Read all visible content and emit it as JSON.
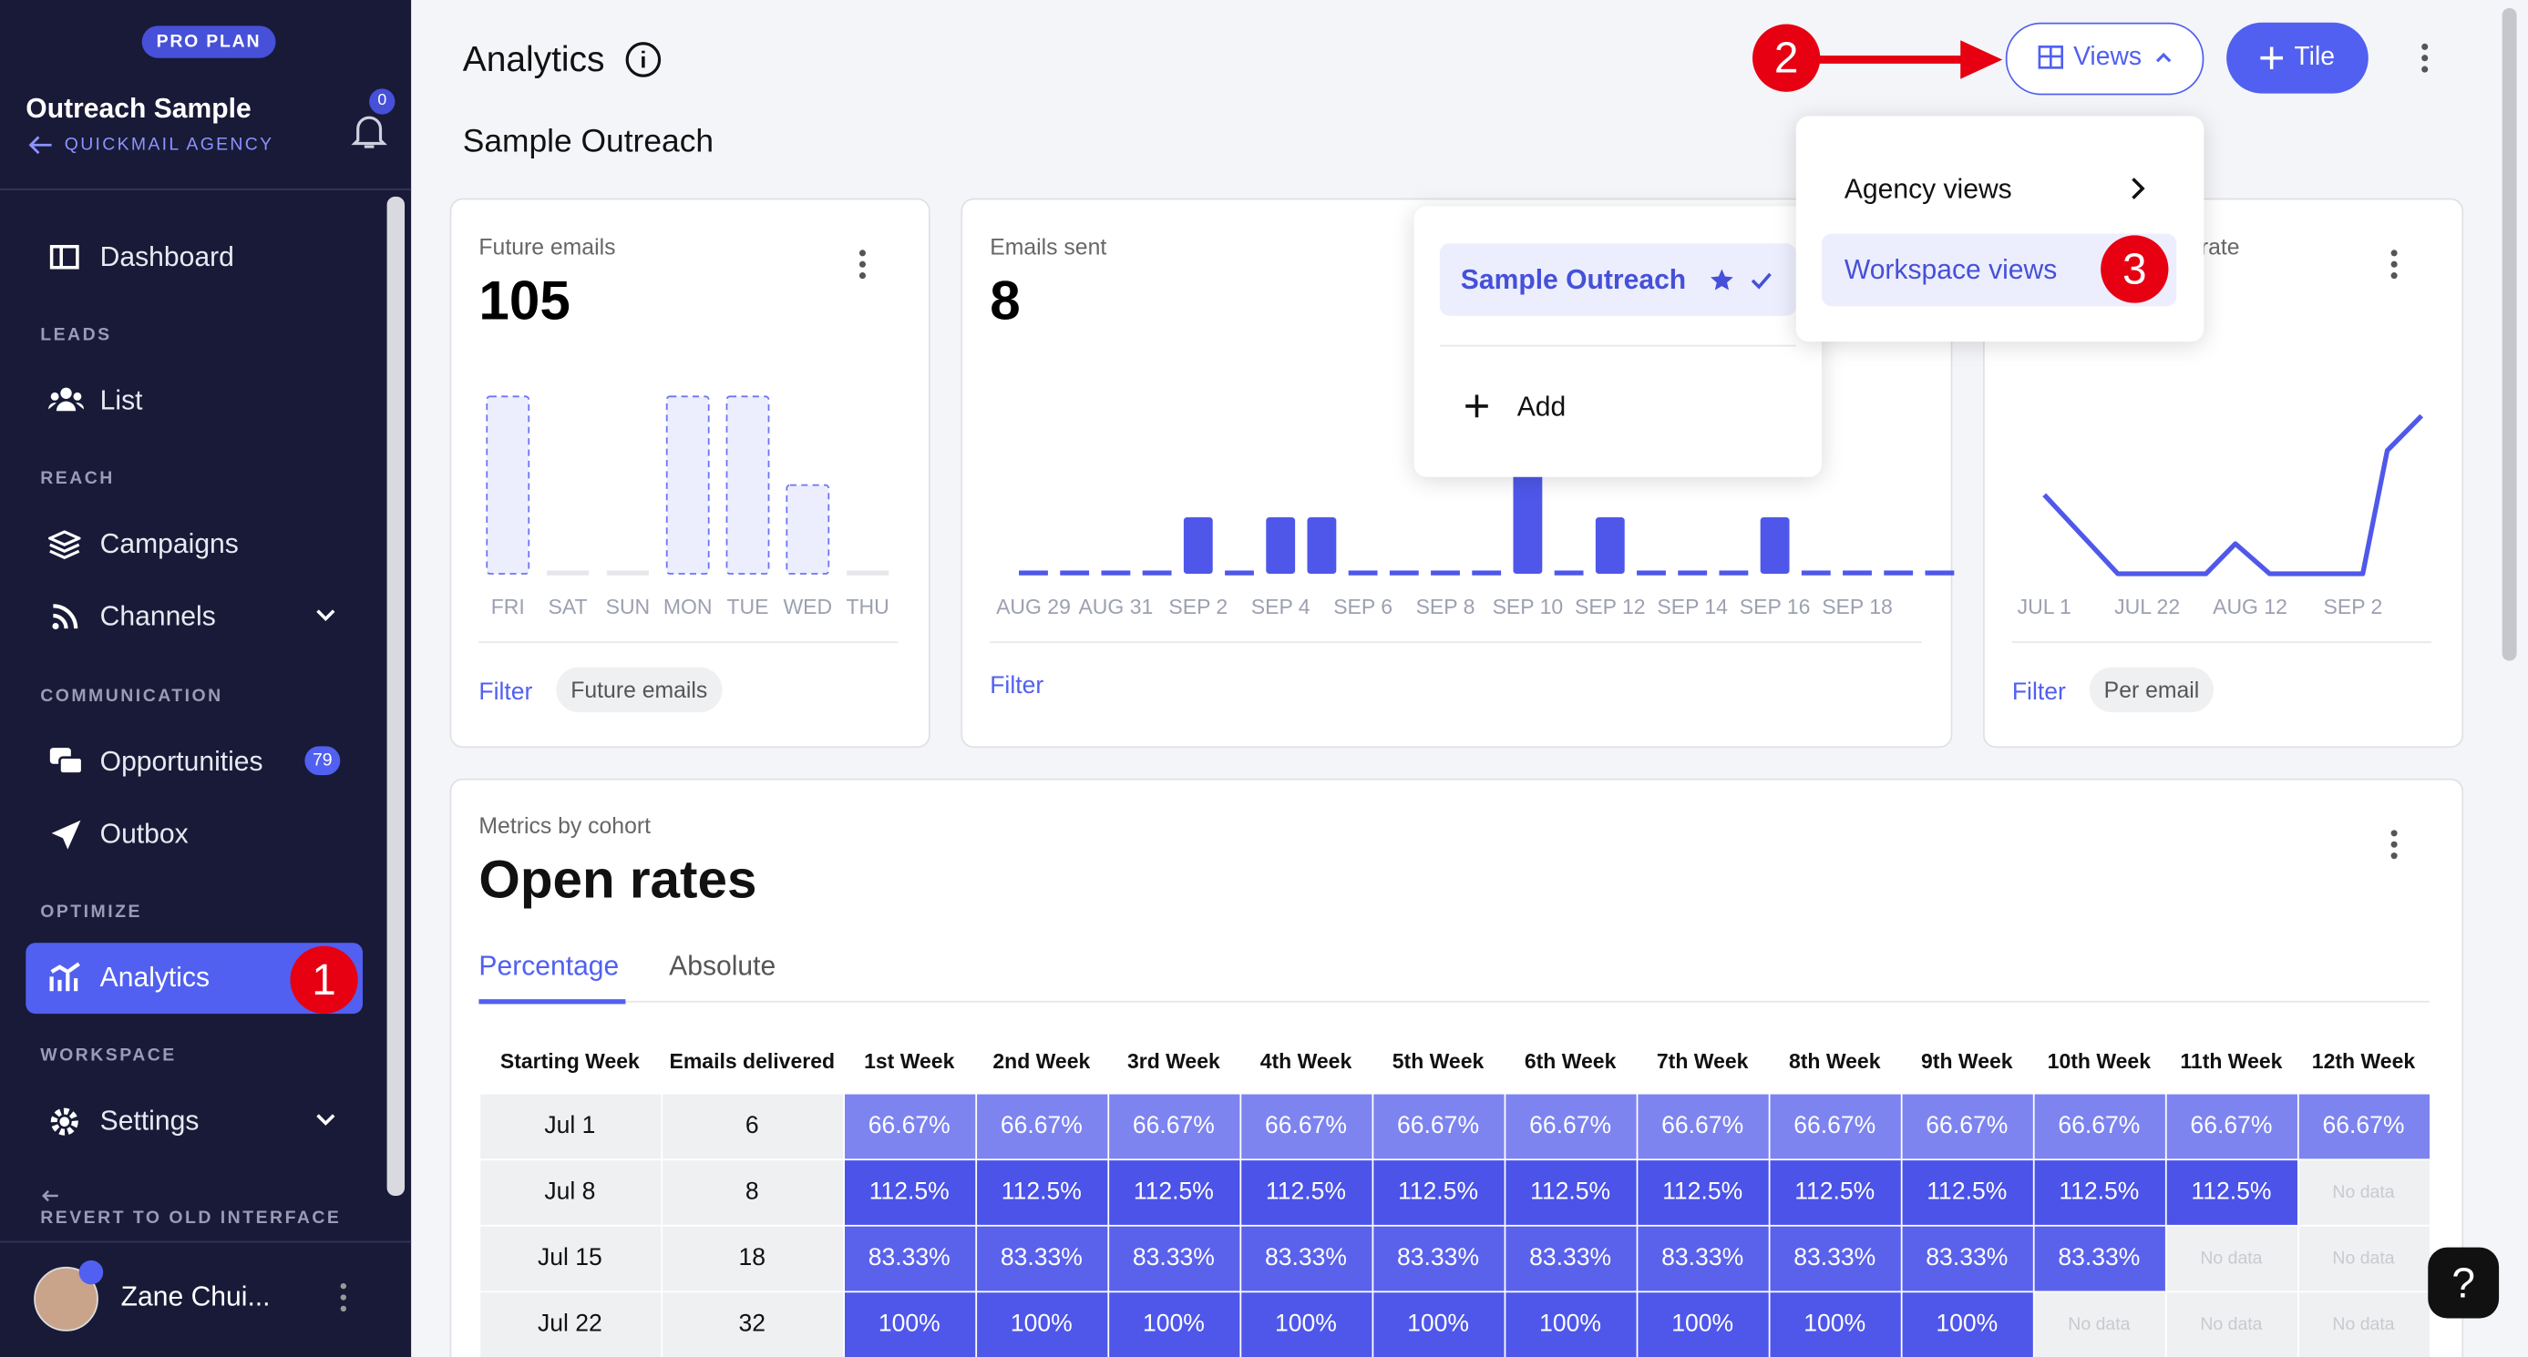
{
  "sidebar": {
    "plan": "PRO PLAN",
    "workspace": "Outreach Sample",
    "agency": "QUICKMAIL AGENCY",
    "notifications": 0,
    "items": {
      "dashboard": "Dashboard",
      "leads": "LEADS",
      "list": "List",
      "reach": "REACH",
      "campaigns": "Campaigns",
      "channels": "Channels",
      "communication": "COMMUNICATION",
      "opportunities": "Opportunities",
      "opportunities_count": 79,
      "outbox": "Outbox",
      "optimize": "OPTIMIZE",
      "analytics": "Analytics",
      "workspace": "WORKSPACE",
      "settings": "Settings",
      "revert": "REVERT TO OLD INTERFACE"
    },
    "user": "Zane Chui..."
  },
  "header": {
    "title": "Analytics",
    "subtitle": "Sample Outreach",
    "views": "Views",
    "tile": "Tile"
  },
  "views_menu": {
    "current": "Sample Outreach",
    "add": "Add"
  },
  "views_submenu": {
    "agency": "Agency views",
    "workspace": "Workspace views"
  },
  "annotations": [
    "1",
    "2",
    "3"
  ],
  "tiles": [
    {
      "label": "Future emails",
      "value": 105,
      "filter": "Filter",
      "chip": "Future emails",
      "chart": {
        "type": "bar",
        "color": "#6d74f0",
        "categories": [
          "FRI",
          "SAT",
          "SUN",
          "MON",
          "TUE",
          "WED",
          "THU"
        ],
        "values": [
          2,
          0,
          0,
          2,
          2,
          1,
          0
        ]
      }
    },
    {
      "label": "Emails sent",
      "value": 8,
      "filter": "Filter",
      "chart": {
        "type": "bar",
        "color": "#4f57ea",
        "categories": [
          "AUG 29",
          null,
          "AUG 31",
          null,
          "SEP 2",
          null,
          "SEP 4",
          null,
          "SEP 6",
          null,
          "SEP 8",
          null,
          "SEP 10",
          null,
          "SEP 12",
          null,
          "SEP 14",
          null,
          "SEP 16",
          null,
          "SEP 18",
          null,
          null
        ],
        "values": [
          0,
          0,
          0,
          0,
          1,
          0,
          1,
          1,
          0,
          0,
          0,
          0,
          3,
          0,
          1,
          0,
          0,
          0,
          1,
          0,
          0,
          0,
          0
        ]
      }
    },
    {
      "label": "rate",
      "filter": "Filter",
      "chip": "Per email",
      "chart": {
        "type": "line",
        "color": "#5058ea",
        "x": [
          0,
          15,
          33,
          39,
          46,
          65,
          70,
          77
        ],
        "values": [
          50,
          0,
          0,
          19,
          0,
          0,
          78,
          100
        ],
        "xlim": [
          0,
          77
        ],
        "ylim": [
          0,
          100
        ],
        "xticks": [
          {
            "value": 0,
            "label": "JUL 1"
          },
          {
            "value": 21,
            "label": "JUL 22"
          },
          {
            "value": 42,
            "label": "AUG 12"
          },
          {
            "value": 63,
            "label": "SEP 2"
          }
        ]
      }
    }
  ],
  "cohort": {
    "kicker": "Metrics by cohort",
    "title": "Open rates",
    "tabs": [
      "Percentage",
      "Absolute"
    ],
    "table": {
      "headers": [
        "Starting Week",
        "Emails delivered",
        "1st Week",
        "2nd Week",
        "3rd Week",
        "4th Week",
        "5th Week",
        "6th Week",
        "7th Week",
        "8th Week",
        "9th Week",
        "10th Week",
        "11th Week",
        "12th Week"
      ],
      "row_colors": [
        "#7d84f0",
        "#4b53e8",
        "#5a62ec",
        "#4f57ea"
      ],
      "rows": [
        [
          "Jul 1",
          6,
          "66.67%",
          "66.67%",
          "66.67%",
          "66.67%",
          "66.67%",
          "66.67%",
          "66.67%",
          "66.67%",
          "66.67%",
          "66.67%",
          "66.67%",
          "66.67%"
        ],
        [
          "Jul 8",
          8,
          "112.5%",
          "112.5%",
          "112.5%",
          "112.5%",
          "112.5%",
          "112.5%",
          "112.5%",
          "112.5%",
          "112.5%",
          "112.5%",
          "112.5%",
          "No data"
        ],
        [
          "Jul 15",
          18,
          "83.33%",
          "83.33%",
          "83.33%",
          "83.33%",
          "83.33%",
          "83.33%",
          "83.33%",
          "83.33%",
          "83.33%",
          "83.33%",
          "No data",
          "No data"
        ],
        [
          "Jul 22",
          32,
          "100%",
          "100%",
          "100%",
          "100%",
          "100%",
          "100%",
          "100%",
          "100%",
          "100%",
          "No data",
          "No data",
          "No data"
        ]
      ]
    }
  },
  "help": "?"
}
